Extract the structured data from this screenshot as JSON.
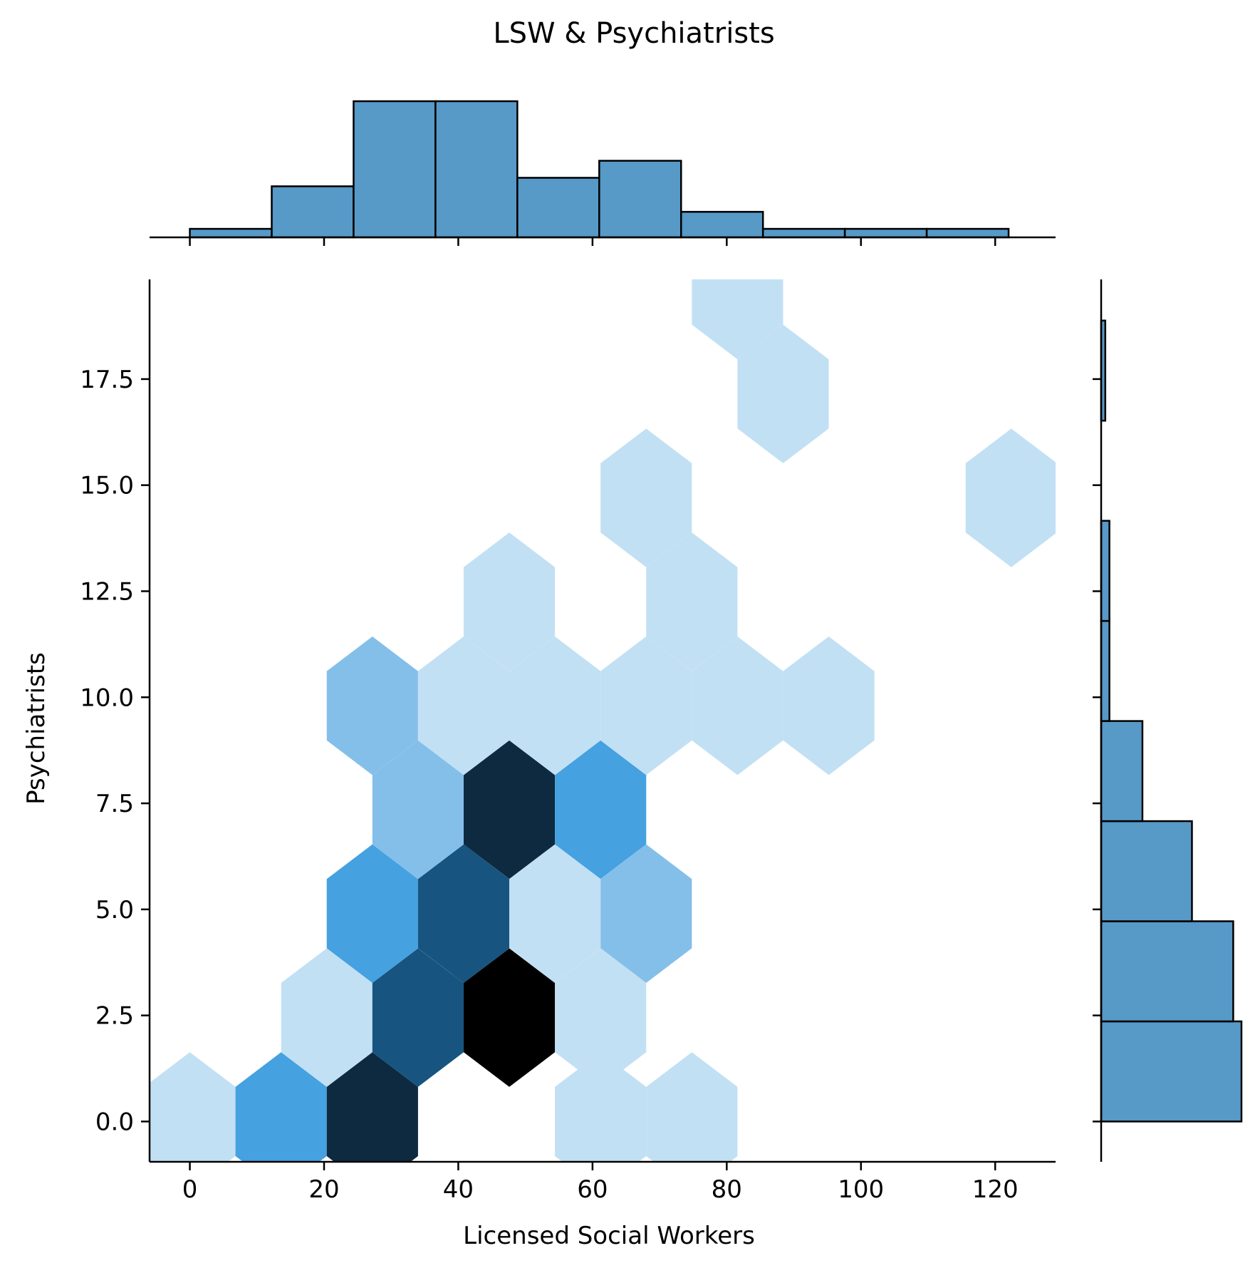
{
  "chart_data": {
    "type": "hexbin",
    "title": "LSW & Psychiatrists",
    "xlabel": "Licensed Social Workers",
    "ylabel": "Psychiatrists",
    "xlim": [
      -6,
      129
    ],
    "ylim": [
      -0.95,
      19.85
    ],
    "xticks": [
      0,
      20,
      40,
      60,
      80,
      100,
      120
    ],
    "xtick_labels": [
      "0",
      "20",
      "40",
      "60",
      "80",
      "100",
      "120"
    ],
    "yticks": [
      0,
      2.5,
      5,
      7.5,
      10,
      12.5,
      15,
      17.5
    ],
    "ytick_labels": [
      "0.0",
      "2.5",
      "5.0",
      "7.5",
      "10.0",
      "12.5",
      "15.0",
      "17.5"
    ],
    "colors": {
      "hist": "#5799c7",
      "hex_levels": [
        "#c2e0f4",
        "#84bfea",
        "#45a1e0",
        "#175480",
        "#0e2a40",
        "#000000"
      ]
    },
    "hexbin": {
      "cells": [
        {
          "x": 0.0,
          "y": 0.0,
          "level": 0
        },
        {
          "x": 13.6,
          "y": 0.0,
          "level": 2
        },
        {
          "x": 27.2,
          "y": 0.0,
          "level": 4
        },
        {
          "x": 61.2,
          "y": 0.0,
          "level": 0
        },
        {
          "x": 74.8,
          "y": 0.0,
          "level": 0
        },
        {
          "x": 20.4,
          "y": 2.45,
          "level": 0
        },
        {
          "x": 34.0,
          "y": 2.45,
          "level": 3
        },
        {
          "x": 47.6,
          "y": 2.45,
          "level": 5
        },
        {
          "x": 61.2,
          "y": 2.45,
          "level": 0
        },
        {
          "x": 27.2,
          "y": 4.9,
          "level": 2
        },
        {
          "x": 40.8,
          "y": 4.9,
          "level": 3
        },
        {
          "x": 54.4,
          "y": 4.9,
          "level": 0
        },
        {
          "x": 68.0,
          "y": 4.9,
          "level": 1
        },
        {
          "x": 34.0,
          "y": 7.35,
          "level": 1
        },
        {
          "x": 47.6,
          "y": 7.35,
          "level": 4
        },
        {
          "x": 61.2,
          "y": 7.35,
          "level": 2
        },
        {
          "x": 27.2,
          "y": 9.8,
          "level": 1
        },
        {
          "x": 40.8,
          "y": 9.8,
          "level": 0
        },
        {
          "x": 54.4,
          "y": 9.8,
          "level": 0
        },
        {
          "x": 68.0,
          "y": 9.8,
          "level": 0
        },
        {
          "x": 81.6,
          "y": 9.8,
          "level": 0
        },
        {
          "x": 95.2,
          "y": 9.8,
          "level": 0
        },
        {
          "x": 47.6,
          "y": 12.25,
          "level": 0
        },
        {
          "x": 74.8,
          "y": 12.25,
          "level": 0
        },
        {
          "x": 68.0,
          "y": 14.7,
          "level": 0
        },
        {
          "x": 122.4,
          "y": 14.7,
          "level": 0
        },
        {
          "x": 88.4,
          "y": 17.15,
          "level": 0
        },
        {
          "x": 81.6,
          "y": 19.6,
          "level": 0
        }
      ]
    },
    "marginal_x": {
      "type": "histogram",
      "bin_edges": [
        0,
        12.2,
        24.4,
        36.6,
        48.8,
        61.0,
        73.2,
        85.4,
        97.6,
        109.8,
        122.0
      ],
      "counts": [
        1,
        6,
        16,
        16,
        7,
        9,
        3,
        1,
        1,
        1
      ]
    },
    "marginal_y": {
      "type": "histogram",
      "bin_edges": [
        0,
        2.36,
        4.72,
        7.08,
        9.44,
        11.8,
        14.16,
        16.52,
        18.88
      ],
      "counts": [
        17,
        16,
        11,
        5,
        1,
        1,
        0,
        0.5
      ]
    }
  }
}
